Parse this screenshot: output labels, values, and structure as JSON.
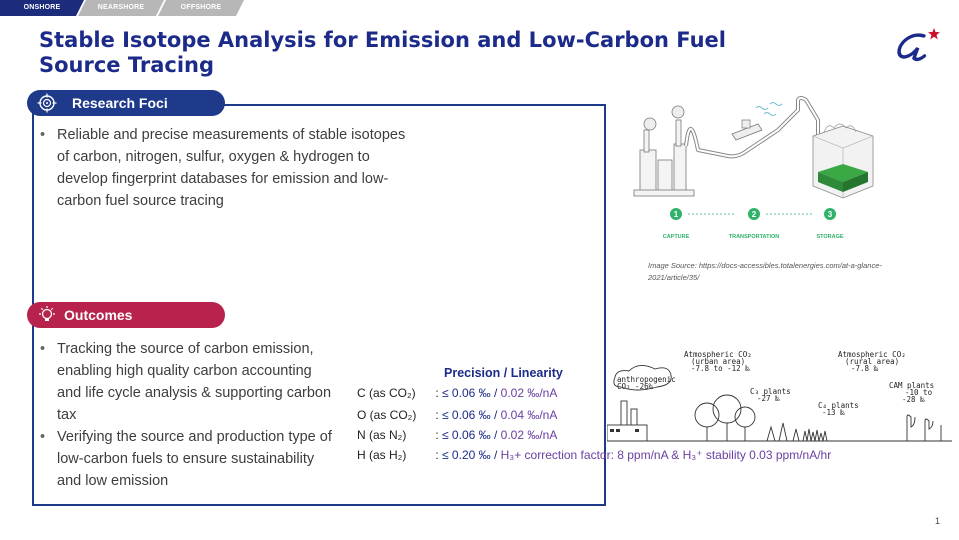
{
  "tabs": [
    {
      "label": "ONSHORE",
      "active": true
    },
    {
      "label": "NEARSHORE",
      "active": false
    },
    {
      "label": "OFFSHORE",
      "active": false
    }
  ],
  "title": "Stable Isotope Analysis for Emission and Low-Carbon Fuel Source Tracing",
  "research": {
    "heading": "Research Foci",
    "bullets": [
      "Reliable and precise measurements of stable isotopes of carbon, nitrogen, sulfur, oxygen & hydrogen to develop fingerprint databases for emission and low-carbon fuel source tracing"
    ]
  },
  "outcomes": {
    "heading": "Outcomes",
    "bullets": [
      "Tracking the source of carbon emission, enabling high quality carbon accounting and life cycle analysis & supporting carbon tax",
      "Verifying the source and production type of low-carbon fuels to ensure sustainability and low emission"
    ]
  },
  "diagram": {
    "steps": [
      "CAPTURE",
      "TRANSPORTATION",
      "STORAGE"
    ],
    "numbers": [
      "1",
      "2",
      "3"
    ],
    "caption": "Image Source: https://docs-accessibles.totalenergies.com/at-a-glance-2021/article/35/"
  },
  "precision": {
    "header_precision": "Precision",
    "header_sep": " / ",
    "header_linearity": "Linearity",
    "rows": [
      {
        "element": "C (as CO₂)",
        "sep": " : ",
        "precision": "≤ 0.06 ‰ / ",
        "linearity": "0.02 ‰/nA"
      },
      {
        "element": "O (as CO₂)",
        "sep": " : ",
        "precision": "≤ 0.06 ‰ / ",
        "linearity": "0.04 ‰/nA"
      },
      {
        "element": "N (as N₂)",
        "sep": " : ",
        "precision": "≤ 0.06 ‰ / ",
        "linearity": "0.02 ‰/nA"
      },
      {
        "element": "H (as H₂)",
        "sep": " : ",
        "precision": "≤ 0.20 ‰ / ",
        "linearity": "H₃+ correction factor: 8 ppm/nA & H₃⁺ stability 0.03 ppm/nA/hr"
      }
    ]
  },
  "sketch": {
    "labels": {
      "urban_1": "Atmospheric CO₂",
      "urban_2": "(urban area)",
      "urban_3": "-7.8 to -12 ‰",
      "rural_1": "Atmospheric CO₂",
      "rural_2": "(rural area)",
      "rural_3": "-7.8 ‰",
      "anthro_1": "anthropogenic",
      "anthro_2": "CO₂   -26‰",
      "c3_1": "C₃ plants",
      "c3_2": "-27 ‰",
      "c4_1": "C₄ plants",
      "c4_2": "-13 ‰",
      "cam_1": "CAM plants",
      "cam_2": "-10 to",
      "cam_3": "-28 ‰"
    }
  },
  "colors": {
    "navy": "#1c2b8a",
    "crimson": "#b8234d",
    "green": "#2fb36b"
  },
  "page_number": "1"
}
